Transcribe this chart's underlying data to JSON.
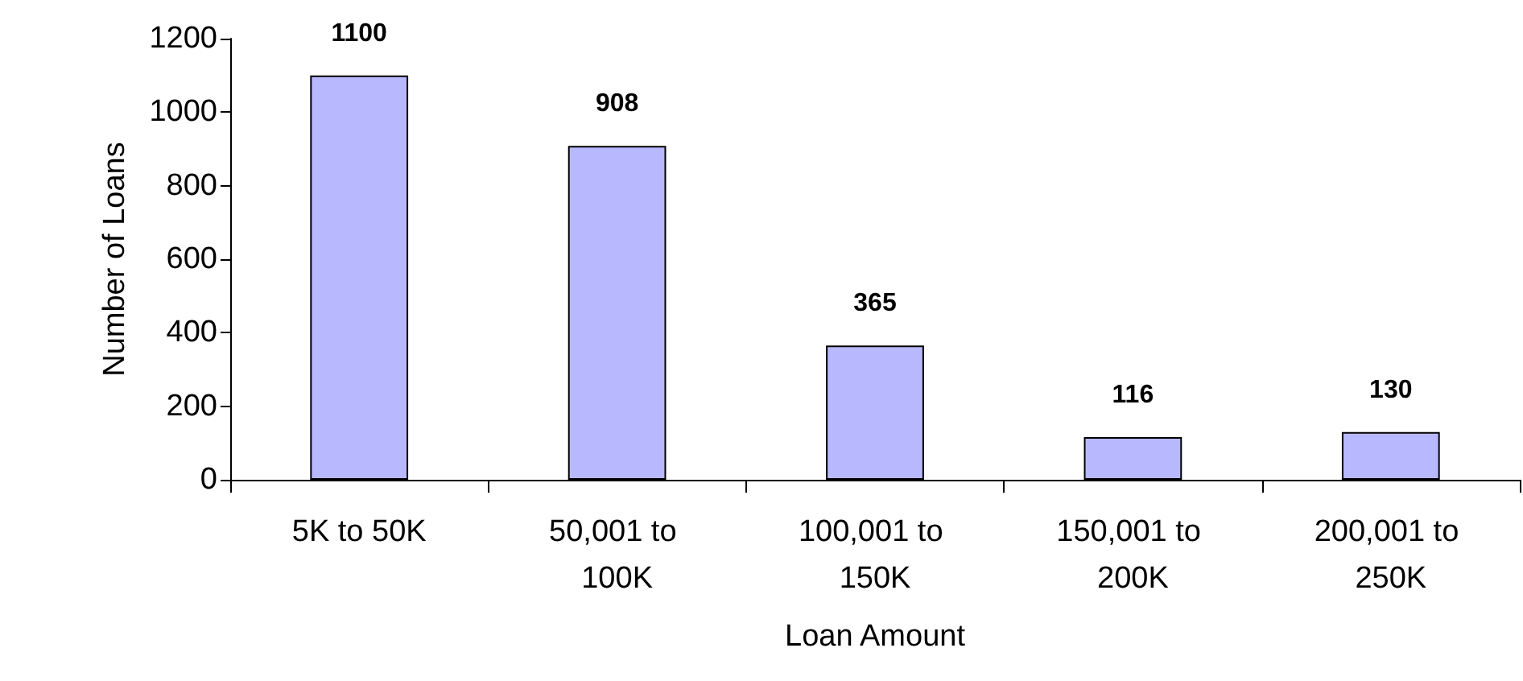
{
  "chart_data": {
    "type": "bar",
    "xlabel": "Loan Amount",
    "ylabel": "Number of Loans",
    "categories": [
      "5K to 50K",
      "50,001 to 100K",
      "100,001 to 150K",
      "150,001 to 200K",
      "200,001 to 250K"
    ],
    "values": [
      1100,
      908,
      365,
      116,
      130
    ],
    "color": "#b8b8ff",
    "ylim": [
      0,
      1200
    ],
    "yticks": [
      0,
      200,
      400,
      600,
      800,
      1000,
      1200
    ],
    "grid": false,
    "data_labels": true
  }
}
